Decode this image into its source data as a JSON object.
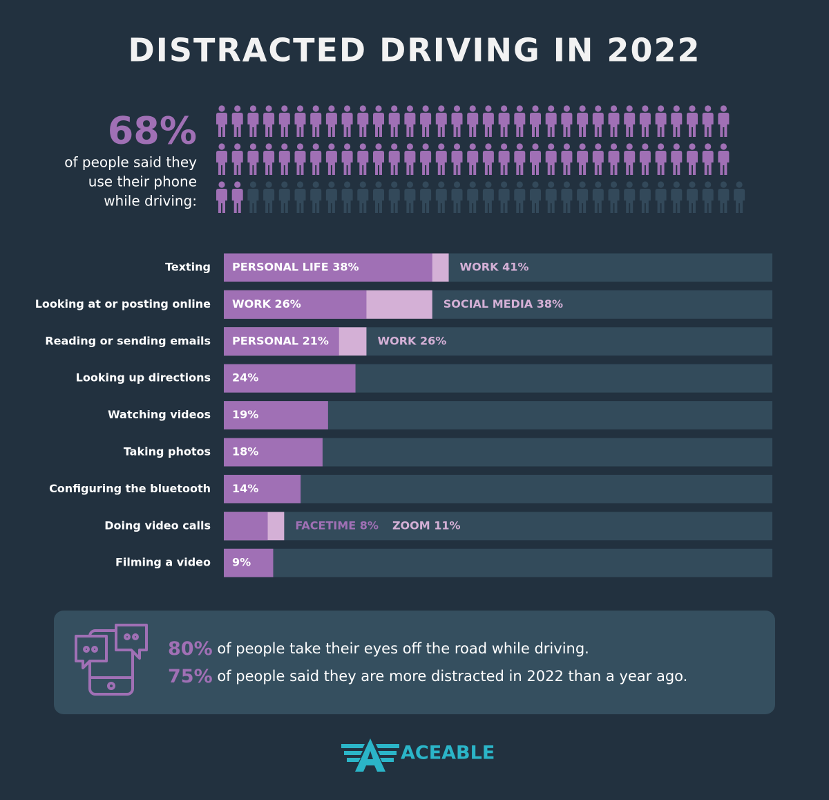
{
  "title": "DISTRACTED DRIVING IN 2022",
  "pictogram": {
    "value": 68,
    "label": "68%",
    "color": "#a070b5",
    "rest_color": "#33495a",
    "text": [
      "of people said they",
      "use their phone",
      "while driving:"
    ]
  },
  "chart_data": {
    "type": "bar",
    "orientation": "horizontal",
    "xlim": [
      0,
      100
    ],
    "colors": [
      "#a070b5",
      "#d4b0d6"
    ],
    "track_color": "#334b5b",
    "rows": [
      {
        "category": "Texting",
        "values": [
          38,
          41
        ],
        "value_labels": [
          "PERSONAL LIFE 38%",
          "WORK 41%"
        ]
      },
      {
        "category": "Looking at or posting online",
        "values": [
          26,
          38
        ],
        "value_labels": [
          "WORK 26%",
          "SOCIAL MEDIA 38%"
        ]
      },
      {
        "category": "Reading or sending emails",
        "values": [
          21,
          26
        ],
        "value_labels": [
          "PERSONAL 21%",
          "WORK 26%"
        ]
      },
      {
        "category": "Looking up directions",
        "values": [
          24
        ],
        "value_labels": [
          "24%"
        ]
      },
      {
        "category": "Watching videos",
        "values": [
          19
        ],
        "value_labels": [
          "19%"
        ]
      },
      {
        "category": "Taking photos",
        "values": [
          18
        ],
        "value_labels": [
          "18%"
        ]
      },
      {
        "category": "Configuring the bluetooth",
        "values": [
          14
        ],
        "value_labels": [
          "14%"
        ]
      },
      {
        "category": "Doing video calls",
        "values": [
          8,
          11
        ],
        "value_labels": [
          "FACETIME 8%",
          "ZOOM 11%"
        ]
      },
      {
        "category": "Filming a video",
        "values": [
          9
        ],
        "value_labels": [
          "9%"
        ]
      }
    ]
  },
  "callouts": [
    {
      "label": "80%",
      "text": " of people take their eyes off the road while driving."
    },
    {
      "label": "75%",
      "text": " of people said they are more distracted in 2022 than a year ago."
    }
  ],
  "logo": "ACEABLE"
}
